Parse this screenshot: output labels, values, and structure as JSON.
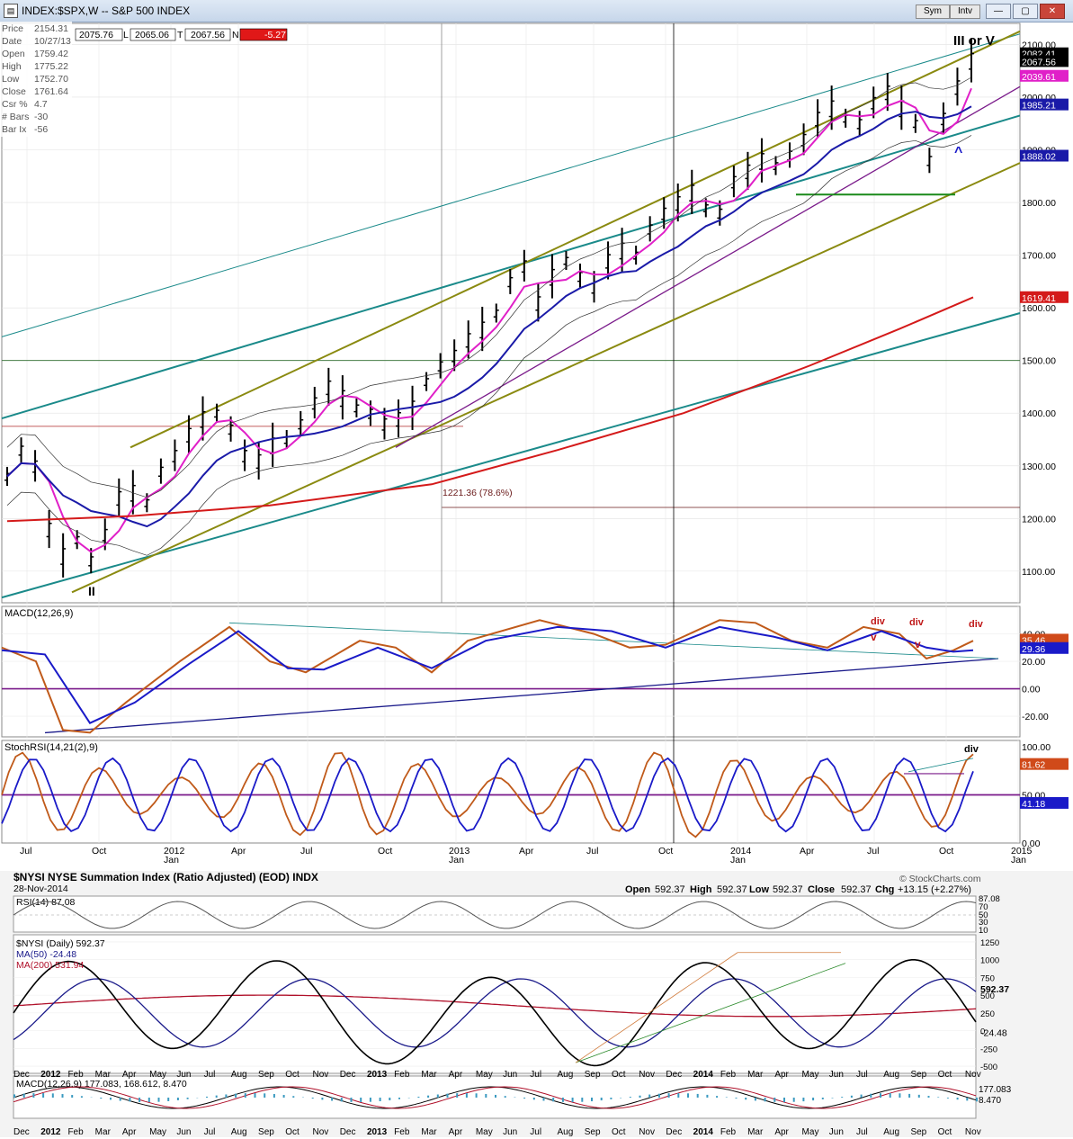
{
  "window": {
    "title": "INDEX:$SPX,W -- S&P 500 INDEX",
    "sym_label": "Sym",
    "intv_label": "Intv"
  },
  "info_panel": {
    "rows": [
      {
        "label": "Price",
        "value": "2154.31"
      },
      {
        "label": "Date",
        "value": "10/27/13"
      },
      {
        "label": "Open",
        "value": "1759.42"
      },
      {
        "label": "High",
        "value": "1775.22"
      },
      {
        "label": "Low",
        "value": "1752.70"
      },
      {
        "label": "Close",
        "value": "1761.64"
      },
      {
        "label": "Csr %",
        "value": "4.7"
      },
      {
        "label": "# Bars",
        "value": "-30"
      },
      {
        "label": "Bar Ix",
        "value": "-56"
      }
    ]
  },
  "quote_bar": {
    "v1": "2075.76",
    "l1": "L",
    "v2": "2065.06",
    "l2": "T",
    "v3": "2067.56",
    "l3": "N",
    "v4": "-5.27"
  },
  "annotations": {
    "top_wave": "III or V",
    "bottom_wave": "II",
    "caret": "^",
    "fib": "1221.36 (78.6%)",
    "div1": "div",
    "div2": "div",
    "div3": "div",
    "div4": "div",
    "v1": "v",
    "v2": "v"
  },
  "colors": {
    "bars": "#000000",
    "ma_fast": "#e020c8",
    "ma_mid": "#1a1aa8",
    "ma_slow": "#d41a1a",
    "channel_olive": "#8a8a10",
    "channel_teal": "#1a8a8a",
    "purple_line": "#7a1a8a",
    "macd_line": "#c05a1a",
    "signal_line": "#1a1ac8"
  },
  "chart_data": [
    {
      "type": "line",
      "name": "price_panel",
      "title": "INDEX:$SPX,W -- S&P 500 INDEX",
      "ylim": [
        1040,
        2140
      ],
      "y_ticks": [
        "2100.00",
        "2000.00",
        "1900.00",
        "1800.00",
        "1700.00",
        "1600.00",
        "1500.00",
        "1400.00",
        "1300.00",
        "1200.00",
        "1100.00"
      ],
      "x_ticks": [
        "Jul",
        "Oct",
        "2012",
        "Apr",
        "Jul",
        "Oct",
        "2013",
        "Apr",
        "Jul",
        "Oct",
        "2014",
        "Apr",
        "Jul",
        "Oct",
        "2015"
      ],
      "x_sub_ticks": [
        "Jan",
        "Jan",
        "Jan",
        "Jan"
      ],
      "price_labels": [
        "2082.41",
        "2067.56",
        "2039.61",
        "1985.21",
        "1888.02",
        "1619.41"
      ],
      "series": [
        {
          "values": [
            1280,
            1330,
            1300,
            1180,
            1130,
            1160,
            1120,
            1170,
            1240,
            1250,
            1230,
            1290,
            1320,
            1360,
            1390,
            1400,
            1370,
            1320,
            1310,
            1340,
            1350,
            1380,
            1420,
            1450,
            1430,
            1410,
            1400,
            1380,
            1390,
            1410,
            1460,
            1490,
            1510,
            1540,
            1560,
            1590,
            1650,
            1680,
            1610,
            1660,
            1690,
            1660,
            1640,
            1690,
            1710,
            1700,
            1750,
            1780,
            1800,
            1820,
            1790,
            1780,
            1840,
            1860,
            1880,
            1870,
            1890,
            1920,
            1960,
            1980,
            1960,
            1950,
            1990,
            2010,
            1980,
            1950,
            1880,
            1960,
            2020,
            2070
          ]
        }
      ]
    },
    {
      "type": "line",
      "name": "macd_panel",
      "title": "MACD(12,26,9)",
      "ylim": [
        -35,
        60
      ],
      "y_ticks": [
        "40.00",
        "20.00",
        "0.00",
        "-20.00"
      ],
      "value_labels": [
        "35.46",
        "29.36"
      ]
    },
    {
      "type": "line",
      "name": "stochrsi_panel",
      "title": "StochRSI(14,21(2),9)",
      "ylim": [
        0,
        100
      ],
      "y_ticks": [
        "100.00",
        "50.00",
        "0.00"
      ],
      "value_labels": [
        "81.62",
        "41.18"
      ]
    },
    {
      "type": "line",
      "name": "nysi_panel",
      "title": "$NYSI NYSE Summation Index (Ratio Adjusted) (EOD) INDX",
      "date": "28-Nov-2014",
      "source": "© StockCharts.com",
      "ohlc": {
        "open_label": "Open",
        "open": "592.37",
        "high_label": "High",
        "high": "592.37",
        "low_label": "Low",
        "low": "592.37",
        "close_label": "Close",
        "close": "592.37",
        "chg_label": "Chg",
        "chg": "+13.15 (+2.27%)"
      },
      "rsi_title": "RSI(14) 87.08",
      "rsi_ticks": [
        "87.08",
        "70",
        "50",
        "30",
        "10"
      ],
      "legend": [
        "$NYSI (Daily) 592.37",
        "MA(50) -24.48",
        "MA(200) 531.94"
      ],
      "y_ticks": [
        "1250",
        "1000",
        "750",
        "500",
        "250",
        "0",
        "-250",
        "-500"
      ],
      "value_labels": [
        "592.37",
        "-24.48"
      ],
      "macd_title": "MACD(12,26,9) 177.083, 168.612, 8.470",
      "macd_labels": [
        "177.083",
        "8.470"
      ],
      "x_ticks": [
        "Dec",
        "2012",
        "Feb",
        "Mar",
        "Apr",
        "May",
        "Jun",
        "Jul",
        "Aug",
        "Sep",
        "Oct",
        "Nov",
        "Dec",
        "2013",
        "Feb",
        "Mar",
        "Apr",
        "May",
        "Jun",
        "Jul",
        "Aug",
        "Sep",
        "Oct",
        "Nov",
        "Dec",
        "2014",
        "Feb",
        "Mar",
        "Apr",
        "May",
        "Jun",
        "Jul",
        "Aug",
        "Sep",
        "Oct",
        "Nov"
      ]
    }
  ]
}
